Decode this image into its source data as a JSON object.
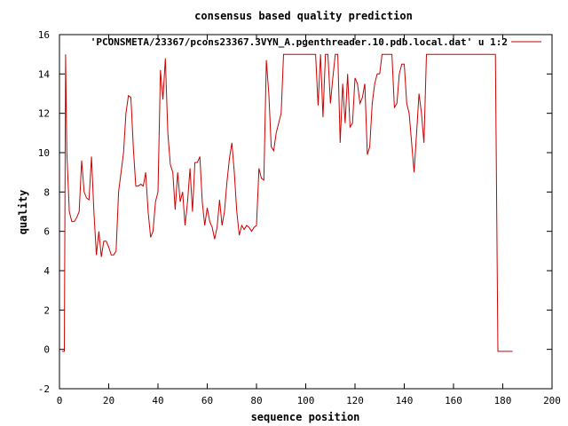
{
  "chart_data": {
    "type": "line",
    "title": "consensus based quality prediction",
    "xlabel": "sequence position",
    "ylabel": "quality",
    "xlim": [
      0,
      200
    ],
    "ylim": [
      -2,
      16
    ],
    "xticks": [
      0,
      20,
      40,
      60,
      80,
      100,
      120,
      140,
      160,
      180,
      200
    ],
    "yticks": [
      -2,
      0,
      2,
      4,
      6,
      8,
      10,
      12,
      14,
      16
    ],
    "grid": false,
    "legend_position": "top-right",
    "series": [
      {
        "name": "'PCONSMETA/23367/pcons23367.3VYN_A.pgenthreader.10.pdb.local.dat' u 1:2",
        "color": "#cc0000",
        "points": [
          [
            1,
            -0.1
          ],
          [
            2,
            -0.1
          ],
          [
            2.5,
            15
          ],
          [
            3,
            10
          ],
          [
            4,
            7
          ],
          [
            5,
            6.5
          ],
          [
            6,
            6.5
          ],
          [
            7,
            6.7
          ],
          [
            8,
            7
          ],
          [
            9,
            9.6
          ],
          [
            10,
            8
          ],
          [
            11,
            7.7
          ],
          [
            12,
            7.6
          ],
          [
            13,
            9.8
          ],
          [
            14,
            7
          ],
          [
            15,
            4.8
          ],
          [
            16,
            6
          ],
          [
            17,
            4.7
          ],
          [
            18,
            5.5
          ],
          [
            19,
            5.5
          ],
          [
            20,
            5.2
          ],
          [
            21,
            4.8
          ],
          [
            22,
            4.8
          ],
          [
            23,
            5
          ],
          [
            24,
            8
          ],
          [
            25,
            9
          ],
          [
            26,
            10
          ],
          [
            27,
            12
          ],
          [
            28,
            12.9
          ],
          [
            29,
            12.8
          ],
          [
            30,
            10.2
          ],
          [
            31,
            8.3
          ],
          [
            32,
            8.3
          ],
          [
            33,
            8.4
          ],
          [
            34,
            8.3
          ],
          [
            35,
            9
          ],
          [
            36,
            7
          ],
          [
            37,
            5.7
          ],
          [
            38,
            6
          ],
          [
            39,
            7.5
          ],
          [
            40,
            8
          ],
          [
            41,
            14.2
          ],
          [
            42,
            12.7
          ],
          [
            43,
            14.8
          ],
          [
            44,
            11
          ],
          [
            45,
            9.4
          ],
          [
            46,
            9
          ],
          [
            47,
            7.1
          ],
          [
            48,
            9
          ],
          [
            49,
            7.5
          ],
          [
            50,
            8
          ],
          [
            51,
            6.3
          ],
          [
            52,
            7.5
          ],
          [
            53,
            9.2
          ],
          [
            54,
            7
          ],
          [
            55,
            9.5
          ],
          [
            56,
            9.5
          ],
          [
            57,
            9.8
          ],
          [
            58,
            7.5
          ],
          [
            59,
            6.3
          ],
          [
            60,
            7.2
          ],
          [
            61,
            6.5
          ],
          [
            62,
            6.2
          ],
          [
            63,
            5.6
          ],
          [
            64,
            6.2
          ],
          [
            65,
            7.6
          ],
          [
            66,
            6.3
          ],
          [
            67,
            7
          ],
          [
            68,
            8.5
          ],
          [
            69,
            9.7
          ],
          [
            70,
            10.5
          ],
          [
            71,
            9
          ],
          [
            72,
            7
          ],
          [
            73,
            5.8
          ],
          [
            74,
            6.3
          ],
          [
            75,
            6.1
          ],
          [
            76,
            6.3
          ],
          [
            77,
            6.2
          ],
          [
            78,
            6
          ],
          [
            79,
            6.2
          ],
          [
            80,
            6.3
          ],
          [
            81,
            9.2
          ],
          [
            82,
            8.7
          ],
          [
            83,
            8.6
          ],
          [
            84,
            14.7
          ],
          [
            85,
            13
          ],
          [
            86,
            10.3
          ],
          [
            87,
            10.1
          ],
          [
            88,
            11
          ],
          [
            89,
            11.5
          ],
          [
            90,
            12
          ],
          [
            91,
            15
          ],
          [
            92,
            15
          ],
          [
            93,
            15
          ],
          [
            94,
            15
          ],
          [
            95,
            15
          ],
          [
            96,
            15
          ],
          [
            97,
            15
          ],
          [
            98,
            15
          ],
          [
            99,
            15
          ],
          [
            100,
            15
          ],
          [
            101,
            15
          ],
          [
            102,
            15
          ],
          [
            103,
            15
          ],
          [
            104,
            15
          ],
          [
            105,
            12.4
          ],
          [
            106,
            15
          ],
          [
            107,
            11.8
          ],
          [
            108,
            15
          ],
          [
            109,
            15
          ],
          [
            110,
            12.5
          ],
          [
            111,
            13.8
          ],
          [
            112,
            15
          ],
          [
            113,
            15
          ],
          [
            114,
            10.5
          ],
          [
            115,
            13.5
          ],
          [
            116,
            11.5
          ],
          [
            117,
            14
          ],
          [
            118,
            11.3
          ],
          [
            119,
            11.5
          ],
          [
            120,
            13.8
          ],
          [
            121,
            13.5
          ],
          [
            122,
            12.5
          ],
          [
            123,
            12.8
          ],
          [
            124,
            13.5
          ],
          [
            125,
            9.9
          ],
          [
            126,
            10.3
          ],
          [
            127,
            12.5
          ],
          [
            128,
            13.5
          ],
          [
            129,
            14
          ],
          [
            130,
            14
          ],
          [
            131,
            15
          ],
          [
            132,
            15
          ],
          [
            133,
            15
          ],
          [
            134,
            15
          ],
          [
            135,
            15
          ],
          [
            136,
            12.3
          ],
          [
            137,
            12.5
          ],
          [
            138,
            14
          ],
          [
            139,
            14.5
          ],
          [
            140,
            14.5
          ],
          [
            141,
            12.5
          ],
          [
            142,
            12
          ],
          [
            143,
            10.5
          ],
          [
            144,
            9
          ],
          [
            145,
            11
          ],
          [
            146,
            13
          ],
          [
            147,
            12
          ],
          [
            148,
            10.5
          ],
          [
            149,
            15
          ],
          [
            150,
            15
          ],
          [
            155,
            15
          ],
          [
            160,
            15
          ],
          [
            165,
            15
          ],
          [
            170,
            15
          ],
          [
            175,
            15
          ],
          [
            177,
            15
          ],
          [
            178,
            -0.1
          ],
          [
            180,
            -0.1
          ],
          [
            182,
            -0.1
          ],
          [
            184,
            -0.1
          ]
        ]
      }
    ]
  }
}
